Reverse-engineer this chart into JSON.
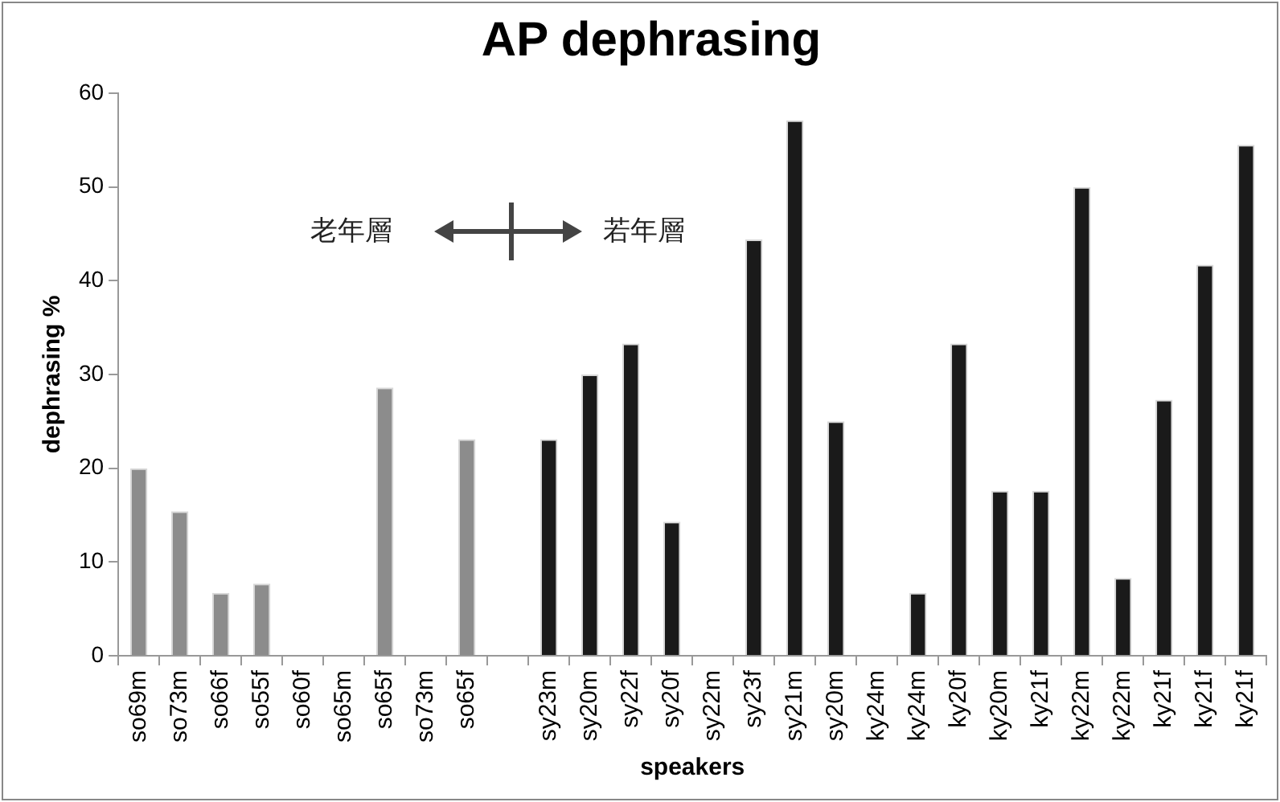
{
  "chart_data": {
    "type": "bar",
    "title": "AP dephrasing",
    "xlabel": "speakers",
    "ylabel": "dephrasing %",
    "categories": [
      "so69m",
      "so73m",
      "so66f",
      "so55f",
      "so60f",
      "so65m",
      "so65f",
      "so73m",
      "so65f",
      null,
      "sy23m",
      "sy20m",
      "sy22f",
      "sy20f",
      "sy22m",
      "sy23f",
      "sy21m",
      "sy20m",
      "ky24m",
      "ky24m",
      "ky20f",
      "ky20m",
      "ky21f",
      "ky22m",
      "ky22m",
      "ky21f",
      "ky21f",
      "ky21f"
    ],
    "values": [
      20,
      15.4,
      6.7,
      7.7,
      0,
      0,
      28.6,
      0,
      23.1,
      null,
      23.1,
      30,
      33.3,
      14.3,
      0,
      44.4,
      57.1,
      25,
      0,
      6.7,
      33.3,
      17.6,
      17.6,
      50,
      8.3,
      27.3,
      41.7,
      54.5
    ],
    "colors": [
      "#8c8c8c",
      "#8c8c8c",
      "#8c8c8c",
      "#8c8c8c",
      "#8c8c8c",
      "#8c8c8c",
      "#8c8c8c",
      "#8c8c8c",
      "#8c8c8c",
      "#8c8c8c",
      "#1a1a1a",
      "#1a1a1a",
      "#1a1a1a",
      "#1a1a1a",
      "#1a1a1a",
      "#1a1a1a",
      "#1a1a1a",
      "#1a1a1a",
      "#1a1a1a",
      "#1a1a1a",
      "#1a1a1a",
      "#1a1a1a",
      "#1a1a1a",
      "#1a1a1a",
      "#1a1a1a",
      "#1a1a1a",
      "#1a1a1a",
      "#1a1a1a"
    ],
    "ylim": [
      0,
      60
    ],
    "yticks": [
      0,
      10,
      20,
      30,
      40,
      50,
      60
    ],
    "grid": false,
    "legend": false,
    "annotations": [
      "老年層",
      "若年層"
    ]
  }
}
